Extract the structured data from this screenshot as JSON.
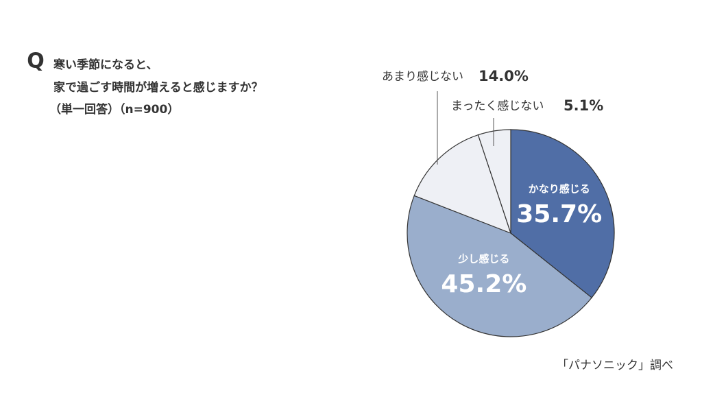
{
  "chart_data": {
    "type": "pie",
    "marker": "Q",
    "title": [
      "寒い季節になると、",
      "家で過ごす時間が増えると感じますか？"
    ],
    "subtitle": "（単一回答）（n=900）",
    "categories": [
      "かなり感じる",
      "少し感じる",
      "あまり感じない",
      "まったく感じない"
    ],
    "values": [
      35.7,
      45.2,
      14.0,
      5.1
    ],
    "value_labels": [
      "35.7%",
      "45.2%",
      "14.0%",
      "5.1%"
    ],
    "colors": [
      "#506ea6",
      "#9aaecc",
      "#eef0f5",
      "#eef0f5"
    ],
    "source": "「パナソニック」調べ"
  }
}
